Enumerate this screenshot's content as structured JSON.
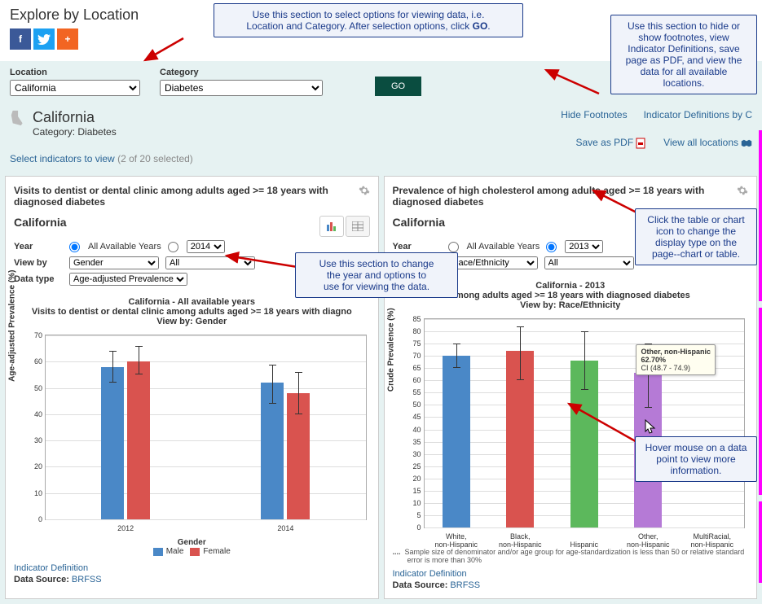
{
  "header": {
    "title": "Explore by Location"
  },
  "filters": {
    "location_label": "Location",
    "location_value": "California",
    "category_label": "Category",
    "category_value": "Diabetes",
    "go": "GO"
  },
  "location_bar": {
    "title": "California",
    "category": "Category: Diabetes",
    "select_link": "Select indicators to view",
    "select_count": "(2 of 20 selected)",
    "hide_footnotes": "Hide Footnotes",
    "indicator_defs": "Indicator Definitions by C",
    "save_pdf": "Save as PDF",
    "view_all": "View all locations"
  },
  "card1": {
    "title": "Visits to dentist or dental clinic among adults aged >= 18 years with diagnosed diabetes",
    "sub": "California",
    "year_label": "Year",
    "all_years": "All Available Years",
    "year_value": "2014",
    "viewby_label": "View by",
    "viewby_value": "Gender",
    "viewby_sub": "All",
    "datatype_label": "Data type",
    "datatype_value": "Age-adjusted Prevalence",
    "chart": {
      "header1": "California - All available years",
      "header2": "Visits to dentist or dental clinic among adults aged >= 18 years with diagno",
      "header3": "View by: Gender",
      "y_label": "Age-adjusted Prevalence (%)",
      "ymax": 70,
      "ytick": 10,
      "groups": [
        "2012",
        "2014"
      ],
      "series": [
        {
          "name": "Male",
          "color": "#4a88c7",
          "values": [
            58,
            52
          ],
          "err_lo": [
            52,
            44
          ],
          "err_hi": [
            64,
            59
          ]
        },
        {
          "name": "Female",
          "color": "#d9534f",
          "values": [
            60,
            48
          ],
          "err_lo": [
            55,
            40
          ],
          "err_hi": [
            66,
            56
          ]
        }
      ],
      "legend_title": "Gender"
    },
    "indicator_def": "Indicator Definition",
    "data_source_label": "Data Source:",
    "data_source": "BRFSS"
  },
  "card2": {
    "title": "Prevalence of high cholesterol among adults aged >= 18 years with diagnosed diabetes",
    "sub": "California",
    "year_label": "Year",
    "all_years": "All Available Years",
    "year_value": "2013",
    "viewby_label": "View by",
    "viewby_value": "Race/Ethnicity",
    "viewby_sub": "All",
    "chart": {
      "header1": "California - 2013",
      "header2": "among adults aged >= 18 years with diagnosed diabetes",
      "header3": "View by: Race/Ethnicity",
      "y_label": "Crude Prevalence (%)",
      "ymax": 85,
      "ytick": 5,
      "categories": [
        "White,\nnon-Hispanic",
        "Black,\nnon-Hispanic",
        "Hispanic",
        "Other,\nnon-Hispanic",
        "MultiRacial,\nnon-Hispanic"
      ],
      "values": [
        70,
        72,
        68,
        63,
        null
      ],
      "err_lo": [
        65,
        60,
        56,
        48.7,
        null
      ],
      "err_hi": [
        75,
        82,
        80,
        74.9,
        null
      ],
      "colors": [
        "#4a88c7",
        "#d9534f",
        "#5cb85c",
        "#b57ad6",
        "#f0ad4e"
      ]
    },
    "tooltip": {
      "l1": "Other, non-Hispanic",
      "l2": "62.70%",
      "l3": "CI (48.7 - 74.9)"
    },
    "note": "Sample size of denominator and/or age group for age-standardization is less than 50 or relative standard error is more than 30%",
    "indicator_def": "Indicator Definition",
    "data_source_label": "Data Source:",
    "data_source": "BRFSS"
  },
  "callouts": {
    "c1a": "Use this section to select options for viewing data, i.e.",
    "c1b": "Location and Category. After selection options, click ",
    "c1c": "GO",
    "c2": "Use this section to hide or show footnotes, view Indicator Definitions, save page as PDF, and view the data for all available locations.",
    "c3a": "Use this section to change",
    "c3b": "the year and options to",
    "c3c": "use for viewing the data.",
    "c4": "Click the table or chart icon to change the display type on the page--chart or table.",
    "c5": "Hover mouse on a data point to view more information."
  },
  "colors": {
    "callout_border": "#1a3a8a",
    "callout_bg": "#f0f3fa",
    "arrow": "#cc0000"
  }
}
